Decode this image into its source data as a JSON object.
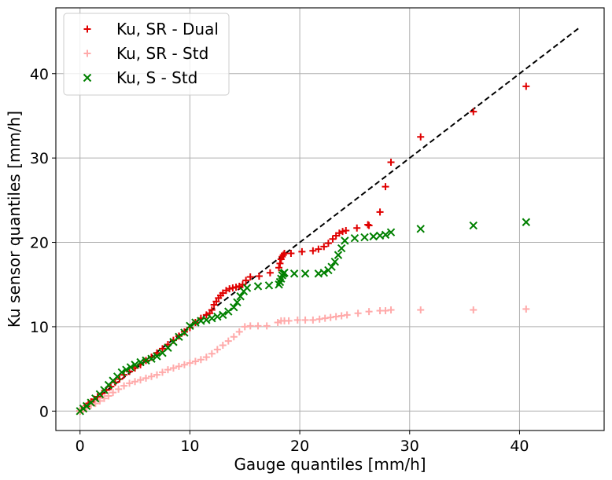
{
  "chart_data": {
    "type": "scatter",
    "xlabel": "Gauge quantiles [mm/h]",
    "ylabel": "Ku sensor quantiles [mm/h]",
    "xlim": [
      -2.2,
      47.7
    ],
    "ylim": [
      -2.3,
      47.8
    ],
    "xticks": [
      "0",
      "10",
      "20",
      "30",
      "40"
    ],
    "yticks": [
      "0",
      "10",
      "20",
      "30",
      "40"
    ],
    "grid": true,
    "legend_position": "top-left",
    "reference_line": {
      "style": "dashed",
      "color": "#000000",
      "x": [
        0,
        45.5
      ],
      "y": [
        0,
        45.5
      ]
    },
    "series": [
      {
        "name": "Ku, SR - Dual",
        "marker": "plus",
        "color": "#e00000",
        "x": [
          0,
          0.2,
          0.4,
          0.6,
          0.8,
          1.0,
          1.3,
          1.6,
          2.0,
          2.4,
          2.8,
          3.2,
          3.6,
          4.0,
          4.5,
          5.0,
          5.5,
          6.0,
          6.5,
          7.0,
          7.5,
          8.0,
          8.5,
          9.0,
          9.5,
          10.0,
          10.5,
          11.0,
          11.5,
          11.8,
          12.0,
          12.2,
          12.4,
          12.6,
          12.8,
          13.0,
          13.3,
          13.6,
          13.9,
          14.2,
          14.5,
          14.8,
          15.1,
          15.5,
          16.3,
          17.3,
          18.1,
          18.2,
          18.3,
          18.4,
          18.5,
          18.6,
          19.2,
          20.2,
          21.2,
          21.7,
          22.2,
          22.6,
          23.0,
          23.3,
          23.6,
          23.9,
          24.2,
          25.2,
          26.2,
          26.3,
          27.3,
          27.8,
          28.3,
          31.0,
          35.8,
          40.6
        ],
        "y": [
          0,
          0.2,
          0.4,
          0.6,
          0.9,
          1.1,
          1.4,
          1.7,
          2.1,
          2.5,
          2.9,
          3.4,
          3.8,
          4.3,
          4.7,
          5.1,
          5.5,
          6.0,
          6.4,
          6.9,
          7.4,
          7.9,
          8.4,
          8.9,
          9.4,
          9.9,
          10.5,
          11.0,
          11.4,
          11.6,
          12.0,
          12.6,
          13.0,
          13.4,
          13.7,
          14.0,
          14.3,
          14.5,
          14.6,
          14.7,
          14.8,
          15.0,
          15.5,
          15.9,
          16.0,
          16.4,
          17.0,
          17.5,
          18.0,
          18.3,
          18.5,
          18.7,
          18.7,
          18.9,
          19.0,
          19.2,
          19.5,
          19.9,
          20.4,
          20.8,
          21.1,
          21.3,
          21.4,
          21.7,
          22.1,
          22.0,
          23.6,
          26.6,
          29.5,
          32.5,
          35.5,
          38.5
        ]
      },
      {
        "name": "Ku, SR - Std",
        "marker": "plus",
        "color": "#ffaaaa",
        "x": [
          0,
          0.3,
          0.6,
          1.0,
          1.4,
          1.8,
          2.2,
          2.6,
          3.0,
          3.5,
          4.0,
          4.5,
          5.0,
          5.5,
          6.0,
          6.5,
          7.0,
          7.5,
          8.0,
          8.5,
          9.0,
          9.5,
          10.0,
          10.5,
          11.0,
          11.5,
          12.0,
          12.5,
          13.0,
          13.5,
          14.0,
          14.5,
          15.0,
          15.5,
          16.2,
          17.0,
          18.0,
          18.3,
          18.6,
          19.0,
          19.8,
          20.5,
          21.2,
          21.8,
          22.3,
          22.8,
          23.3,
          23.8,
          24.3,
          25.3,
          26.3,
          27.3,
          27.8,
          28.3,
          31.0,
          35.8,
          40.6
        ],
        "y": [
          0,
          0.2,
          0.4,
          0.7,
          0.9,
          1.2,
          1.5,
          1.8,
          2.2,
          2.6,
          3.0,
          3.3,
          3.5,
          3.7,
          3.9,
          4.1,
          4.3,
          4.6,
          4.9,
          5.1,
          5.3,
          5.5,
          5.7,
          5.9,
          6.1,
          6.4,
          6.8,
          7.3,
          7.8,
          8.3,
          8.8,
          9.4,
          10.0,
          10.1,
          10.1,
          10.1,
          10.5,
          10.7,
          10.7,
          10.7,
          10.8,
          10.8,
          10.8,
          10.9,
          11.0,
          11.1,
          11.2,
          11.3,
          11.4,
          11.6,
          11.8,
          11.9,
          11.9,
          12.0,
          12.0,
          12.0,
          12.1
        ]
      },
      {
        "name": "Ku, S - Std",
        "marker": "x",
        "color": "#008000",
        "x": [
          0,
          0.3,
          0.6,
          1.0,
          1.4,
          1.8,
          2.2,
          2.6,
          3.0,
          3.4,
          3.8,
          4.2,
          4.6,
          5.0,
          5.5,
          6.0,
          6.5,
          7.0,
          7.5,
          8.0,
          8.5,
          9.0,
          9.5,
          10.0,
          10.5,
          11.0,
          11.5,
          12.0,
          12.5,
          13.0,
          13.5,
          14.0,
          14.3,
          14.6,
          14.9,
          15.2,
          16.2,
          17.2,
          18.1,
          18.2,
          18.3,
          18.4,
          18.5,
          18.6,
          19.5,
          20.5,
          21.7,
          22.2,
          22.6,
          22.9,
          23.2,
          23.5,
          23.8,
          24.1,
          25.0,
          25.9,
          26.7,
          27.3,
          27.8,
          28.3,
          31.0,
          35.8,
          40.6
        ],
        "y": [
          0,
          0.3,
          0.6,
          1.0,
          1.5,
          2.0,
          2.5,
          3.1,
          3.6,
          4.1,
          4.6,
          4.9,
          5.2,
          5.5,
          5.8,
          6.0,
          6.2,
          6.5,
          6.9,
          7.5,
          8.2,
          8.8,
          9.3,
          10.1,
          10.5,
          10.7,
          10.8,
          11.0,
          11.2,
          11.4,
          11.8,
          12.3,
          12.9,
          13.6,
          14.2,
          14.6,
          14.8,
          14.9,
          15.0,
          15.3,
          15.7,
          16.1,
          16.3,
          16.4,
          16.3,
          16.3,
          16.3,
          16.4,
          16.7,
          17.1,
          17.7,
          18.5,
          19.3,
          20.2,
          20.5,
          20.6,
          20.7,
          20.8,
          20.9,
          21.2,
          21.6,
          22.0,
          22.4
        ]
      }
    ]
  }
}
